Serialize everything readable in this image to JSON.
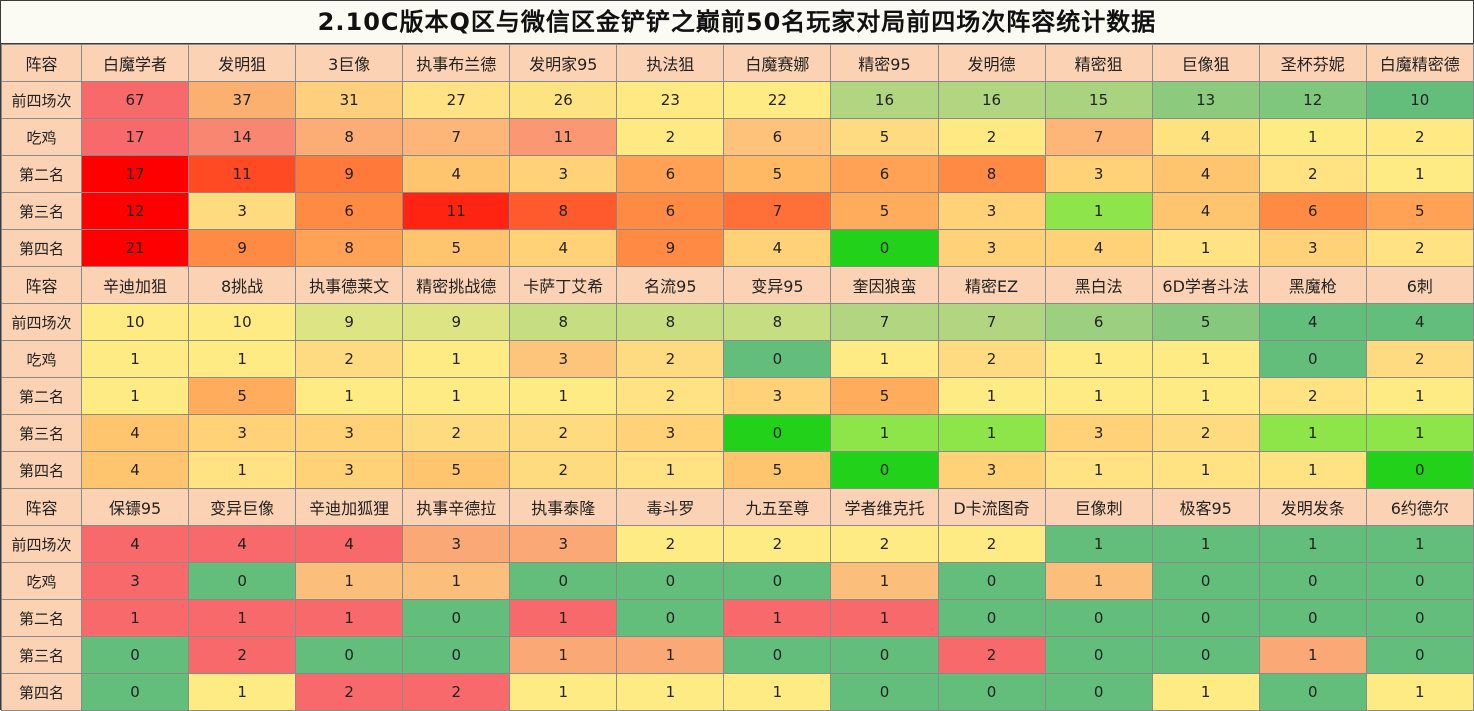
{
  "title": "2.10C版本Q区与微信区金铲铲之巅前50名玩家对局前四场次阵容统计数据",
  "chart_data": {
    "type": "table",
    "header_label": "阵容",
    "row_labels": [
      "前四场次",
      "吃鸡",
      "第二名",
      "第三名",
      "第四名"
    ],
    "blocks": [
      {
        "lineups": [
          "白魔学者",
          "发明狙",
          "3巨像",
          "执事布兰德",
          "发明家95",
          "执法狙",
          "白魔赛娜",
          "精密95",
          "发明德",
          "精密狙",
          "巨像狙",
          "圣杯芬妮",
          "白魔精密德"
        ],
        "rows": [
          [
            67,
            37,
            31,
            27,
            26,
            23,
            22,
            16,
            16,
            15,
            13,
            12,
            10
          ],
          [
            17,
            14,
            8,
            7,
            11,
            2,
            6,
            5,
            2,
            7,
            4,
            1,
            2
          ],
          [
            17,
            11,
            9,
            4,
            3,
            6,
            5,
            6,
            8,
            3,
            4,
            2,
            1
          ],
          [
            12,
            3,
            6,
            11,
            8,
            6,
            7,
            5,
            3,
            1,
            4,
            6,
            5
          ],
          [
            21,
            9,
            8,
            5,
            4,
            9,
            4,
            0,
            3,
            4,
            1,
            3,
            2
          ]
        ],
        "colors": [
          [
            "#f8696b",
            "#fbb06f",
            "#fed07e",
            "#fee283",
            "#fee383",
            "#fee983",
            "#feeb84",
            "#b1d580",
            "#b1d580",
            "#aad37f",
            "#8ccb7e",
            "#7fc77d",
            "#63be7b"
          ],
          [
            "#f8696b",
            "#f98670",
            "#fcad76",
            "#fdb678",
            "#fb9873",
            "#fee983",
            "#fec27a",
            "#fedb80",
            "#fee983",
            "#fdb678",
            "#fee280",
            "#feeb84",
            "#fee983"
          ],
          [
            "#ff0000",
            "#ff4a24",
            "#ff7a3a",
            "#ffc56e",
            "#ffd277",
            "#ffa255",
            "#ffb864",
            "#ffa255",
            "#ff8a44",
            "#ffd277",
            "#ffc56e",
            "#ffe282",
            "#ffeb84"
          ],
          [
            "#ff0000",
            "#ffdb80",
            "#ff8a44",
            "#ff2412",
            "#ff5a2d",
            "#ff8a44",
            "#ff7039",
            "#ffac5d",
            "#ffd277",
            "#8ee54a",
            "#ffc56e",
            "#ff8a44",
            "#ffa255"
          ],
          [
            "#ff0000",
            "#ff8a44",
            "#ffa255",
            "#ffc56e",
            "#ffd277",
            "#ff8a44",
            "#ffd277",
            "#22d21a",
            "#ffd277",
            "#ffd277",
            "#ffe282",
            "#ffd277",
            "#ffe282"
          ]
        ]
      },
      {
        "lineups": [
          "辛迪加狙",
          "8挑战",
          "执事德莱文",
          "精密挑战德",
          "卡萨丁艾希",
          "名流95",
          "变异95",
          "奎因狼蛮",
          "精密EZ",
          "黑白法",
          "6D学者斗法",
          "黑魔枪",
          "6刺"
        ],
        "rows": [
          [
            10,
            10,
            9,
            9,
            8,
            8,
            8,
            7,
            7,
            6,
            5,
            4,
            4
          ],
          [
            1,
            1,
            2,
            1,
            3,
            2,
            0,
            1,
            2,
            1,
            1,
            0,
            2
          ],
          [
            1,
            5,
            1,
            1,
            1,
            2,
            3,
            5,
            1,
            1,
            1,
            2,
            1
          ],
          [
            4,
            3,
            3,
            2,
            2,
            3,
            0,
            1,
            1,
            3,
            2,
            1,
            1
          ],
          [
            4,
            1,
            3,
            5,
            2,
            1,
            5,
            0,
            3,
            1,
            1,
            1,
            0
          ]
        ],
        "colors": [
          [
            "#feeb84",
            "#feeb84",
            "#dde483",
            "#dde483",
            "#c6dd81",
            "#c6dd81",
            "#c6dd81",
            "#b1d580",
            "#b1d580",
            "#9ccf7f",
            "#86c87d",
            "#63be7b",
            "#63be7b"
          ],
          [
            "#feeb84",
            "#feeb84",
            "#fedb80",
            "#feeb84",
            "#fdc47b",
            "#fedb80",
            "#63be7b",
            "#feeb84",
            "#fedb80",
            "#feeb84",
            "#feeb84",
            "#63be7b",
            "#fedb80"
          ],
          [
            "#ffeb84",
            "#ffac5d",
            "#ffeb84",
            "#ffeb84",
            "#ffeb84",
            "#ffe282",
            "#ffd277",
            "#ffac5d",
            "#ffeb84",
            "#ffeb84",
            "#ffeb84",
            "#ffe282",
            "#ffeb84"
          ],
          [
            "#ffc56e",
            "#ffd277",
            "#ffd277",
            "#ffdb80",
            "#ffdb80",
            "#ffd277",
            "#22d21a",
            "#8ee54a",
            "#8ee54a",
            "#ffd277",
            "#ffdb80",
            "#8ee54a",
            "#8ee54a"
          ],
          [
            "#ffc56e",
            "#ffe282",
            "#ffd277",
            "#ffc56e",
            "#ffdb80",
            "#ffe282",
            "#ffc56e",
            "#22d21a",
            "#ffd277",
            "#ffe282",
            "#ffe282",
            "#ffe282",
            "#22d21a"
          ]
        ]
      },
      {
        "lineups": [
          "保镖95",
          "变异巨像",
          "辛迪加狐狸",
          "执事辛德拉",
          "执事泰隆",
          "毒斗罗",
          "九五至尊",
          "学者维克托",
          "D卡流图奇",
          "巨像刺",
          "极客95",
          "发明发条",
          "6约德尔"
        ],
        "rows": [
          [
            4,
            4,
            4,
            3,
            3,
            2,
            2,
            2,
            2,
            1,
            1,
            1,
            1
          ],
          [
            3,
            0,
            1,
            1,
            0,
            0,
            0,
            1,
            0,
            1,
            0,
            0,
            0
          ],
          [
            1,
            1,
            1,
            0,
            1,
            0,
            1,
            1,
            0,
            0,
            0,
            0,
            0
          ],
          [
            0,
            2,
            0,
            0,
            1,
            1,
            0,
            0,
            2,
            0,
            0,
            1,
            0
          ],
          [
            0,
            1,
            2,
            2,
            1,
            1,
            1,
            0,
            0,
            0,
            1,
            0,
            1
          ]
        ],
        "colors": [
          [
            "#f8696b",
            "#f8696b",
            "#f8696b",
            "#fba877",
            "#fba877",
            "#feeb84",
            "#feeb84",
            "#feeb84",
            "#feeb84",
            "#63be7b",
            "#63be7b",
            "#63be7b",
            "#63be7b"
          ],
          [
            "#f8696b",
            "#63be7b",
            "#fcbf7b",
            "#fcbf7b",
            "#63be7b",
            "#63be7b",
            "#63be7b",
            "#fcbf7b",
            "#63be7b",
            "#fcbf7b",
            "#63be7b",
            "#63be7b",
            "#63be7b"
          ],
          [
            "#f8696b",
            "#f8696b",
            "#f8696b",
            "#63be7b",
            "#f8696b",
            "#63be7b",
            "#f8696b",
            "#f8696b",
            "#63be7b",
            "#63be7b",
            "#63be7b",
            "#63be7b",
            "#63be7b"
          ],
          [
            "#63be7b",
            "#f8696b",
            "#63be7b",
            "#63be7b",
            "#fba877",
            "#fba877",
            "#63be7b",
            "#63be7b",
            "#f8696b",
            "#63be7b",
            "#63be7b",
            "#fba877",
            "#63be7b"
          ],
          [
            "#63be7b",
            "#feeb84",
            "#f8696b",
            "#f8696b",
            "#feeb84",
            "#feeb84",
            "#feeb84",
            "#63be7b",
            "#63be7b",
            "#63be7b",
            "#feeb84",
            "#63be7b",
            "#feeb84"
          ]
        ]
      }
    ]
  }
}
